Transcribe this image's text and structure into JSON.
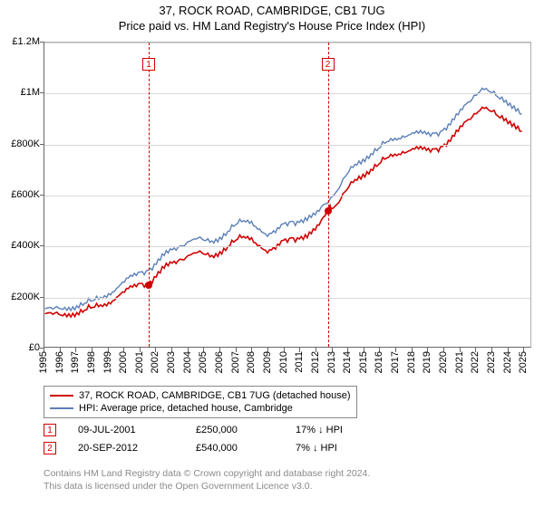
{
  "title_line1": "37, ROCK ROAD, CAMBRIDGE, CB1 7UG",
  "title_line2": "Price paid vs. HM Land Registry's House Price Index (HPI)",
  "chart": {
    "type": "line",
    "background_color": "#ffffff",
    "grid_color": "#d8d8d8",
    "axis_color": "#666666",
    "tick_fontsize": 11,
    "title_fontsize": 13,
    "x_years": [
      1995,
      1996,
      1997,
      1998,
      1999,
      2000,
      2001,
      2002,
      2003,
      2004,
      2005,
      2006,
      2007,
      2008,
      2009,
      2010,
      2011,
      2012,
      2013,
      2014,
      2015,
      2016,
      2017,
      2018,
      2019,
      2020,
      2021,
      2022,
      2023,
      2024,
      2025
    ],
    "y_ticks": [
      0,
      200000,
      400000,
      600000,
      800000,
      1000000,
      1200000
    ],
    "y_labels": [
      "£0",
      "£200K",
      "£400K",
      "£600K",
      "£800K",
      "£1M",
      "£1.2M"
    ],
    "ylim": [
      0,
      1200000
    ],
    "xlim": [
      1995,
      2025.5
    ],
    "series": [
      {
        "name": "37, ROCK ROAD, CAMBRIDGE, CB1 7UG (detached house)",
        "color": "#d00000",
        "line_width": 1.6,
        "points": [
          [
            1995.0,
            130000
          ],
          [
            1995.5,
            128000
          ],
          [
            1996.0,
            125000
          ],
          [
            1996.5,
            130000
          ],
          [
            1997.0,
            135000
          ],
          [
            1997.5,
            145000
          ],
          [
            1998.0,
            155000
          ],
          [
            1998.5,
            165000
          ],
          [
            1999.0,
            175000
          ],
          [
            1999.5,
            195000
          ],
          [
            2000.0,
            215000
          ],
          [
            2000.5,
            235000
          ],
          [
            2001.0,
            250000
          ],
          [
            2001.5,
            250000
          ],
          [
            2002.0,
            275000
          ],
          [
            2002.5,
            310000
          ],
          [
            2003.0,
            330000
          ],
          [
            2003.5,
            345000
          ],
          [
            2004.0,
            360000
          ],
          [
            2004.5,
            370000
          ],
          [
            2005.0,
            365000
          ],
          [
            2005.5,
            360000
          ],
          [
            2006.0,
            375000
          ],
          [
            2006.5,
            395000
          ],
          [
            2007.0,
            420000
          ],
          [
            2007.5,
            435000
          ],
          [
            2008.0,
            430000
          ],
          [
            2008.5,
            400000
          ],
          [
            2009.0,
            370000
          ],
          [
            2009.5,
            385000
          ],
          [
            2010.0,
            420000
          ],
          [
            2010.5,
            430000
          ],
          [
            2011.0,
            425000
          ],
          [
            2011.5,
            430000
          ],
          [
            2012.0,
            460000
          ],
          [
            2012.5,
            510000
          ],
          [
            2012.72,
            540000
          ],
          [
            2013.0,
            545000
          ],
          [
            2013.5,
            570000
          ],
          [
            2014.0,
            620000
          ],
          [
            2014.5,
            660000
          ],
          [
            2015.0,
            680000
          ],
          [
            2015.5,
            700000
          ],
          [
            2016.0,
            720000
          ],
          [
            2016.5,
            745000
          ],
          [
            2017.0,
            760000
          ],
          [
            2017.5,
            770000
          ],
          [
            2018.0,
            775000
          ],
          [
            2018.5,
            780000
          ],
          [
            2019.0,
            775000
          ],
          [
            2019.5,
            780000
          ],
          [
            2020.0,
            790000
          ],
          [
            2020.5,
            810000
          ],
          [
            2021.0,
            850000
          ],
          [
            2021.5,
            890000
          ],
          [
            2022.0,
            920000
          ],
          [
            2022.5,
            945000
          ],
          [
            2023.0,
            930000
          ],
          [
            2023.5,
            910000
          ],
          [
            2024.0,
            900000
          ],
          [
            2024.5,
            880000
          ],
          [
            2025.0,
            850000
          ]
        ]
      },
      {
        "name": "HPI: Average price, detached house, Cambridge",
        "color": "#5b7fb8",
        "line_width": 1.4,
        "points": [
          [
            1995.0,
            150000
          ],
          [
            1995.5,
            148000
          ],
          [
            1996.0,
            150000
          ],
          [
            1996.5,
            155000
          ],
          [
            1997.0,
            162000
          ],
          [
            1997.5,
            172000
          ],
          [
            1998.0,
            182000
          ],
          [
            1998.5,
            195000
          ],
          [
            1999.0,
            210000
          ],
          [
            1999.5,
            230000
          ],
          [
            2000.0,
            255000
          ],
          [
            2000.5,
            278000
          ],
          [
            2001.0,
            295000
          ],
          [
            2001.5,
            302000
          ],
          [
            2002.0,
            325000
          ],
          [
            2002.5,
            360000
          ],
          [
            2003.0,
            382000
          ],
          [
            2003.5,
            398000
          ],
          [
            2004.0,
            415000
          ],
          [
            2004.5,
            425000
          ],
          [
            2005.0,
            420000
          ],
          [
            2005.5,
            418000
          ],
          [
            2006.0,
            432000
          ],
          [
            2006.5,
            455000
          ],
          [
            2007.0,
            482000
          ],
          [
            2007.5,
            498000
          ],
          [
            2008.0,
            495000
          ],
          [
            2008.5,
            465000
          ],
          [
            2009.0,
            435000
          ],
          [
            2009.5,
            450000
          ],
          [
            2010.0,
            485000
          ],
          [
            2010.5,
            495000
          ],
          [
            2011.0,
            490000
          ],
          [
            2011.5,
            498000
          ],
          [
            2012.0,
            520000
          ],
          [
            2012.5,
            560000
          ],
          [
            2013.0,
            590000
          ],
          [
            2013.5,
            625000
          ],
          [
            2014.0,
            680000
          ],
          [
            2014.5,
            720000
          ],
          [
            2015.0,
            740000
          ],
          [
            2015.5,
            762000
          ],
          [
            2016.0,
            782000
          ],
          [
            2016.5,
            808000
          ],
          [
            2017.0,
            822000
          ],
          [
            2017.5,
            832000
          ],
          [
            2018.0,
            838000
          ],
          [
            2018.5,
            842000
          ],
          [
            2019.0,
            838000
          ],
          [
            2019.5,
            842000
          ],
          [
            2020.0,
            852000
          ],
          [
            2020.5,
            875000
          ],
          [
            2021.0,
            915000
          ],
          [
            2021.5,
            958000
          ],
          [
            2022.0,
            992000
          ],
          [
            2022.5,
            1020000
          ],
          [
            2023.0,
            1005000
          ],
          [
            2023.5,
            985000
          ],
          [
            2024.0,
            972000
          ],
          [
            2024.5,
            950000
          ],
          [
            2025.0,
            918000
          ]
        ]
      }
    ],
    "markers": [
      {
        "num": "1",
        "x": 2001.52,
        "badge_y": 1140000,
        "dot_x": 2001.52,
        "dot_y": 250000
      },
      {
        "num": "2",
        "x": 2012.72,
        "badge_y": 1140000,
        "dot_x": 2012.72,
        "dot_y": 540000
      }
    ]
  },
  "legend": [
    {
      "color": "#d00000",
      "label": "37, ROCK ROAD, CAMBRIDGE, CB1 7UG (detached house)"
    },
    {
      "color": "#5b7fb8",
      "label": "HPI: Average price, detached house, Cambridge"
    }
  ],
  "footer_rows": [
    {
      "num": "1",
      "date": "09-JUL-2001",
      "price": "£250,000",
      "delta": "17% ↓ HPI"
    },
    {
      "num": "2",
      "date": "20-SEP-2012",
      "price": "£540,000",
      "delta": "7% ↓ HPI"
    }
  ],
  "license_line1": "Contains HM Land Registry data © Crown copyright and database right 2024.",
  "license_line2": "This data is licensed under the Open Government Licence v3.0."
}
